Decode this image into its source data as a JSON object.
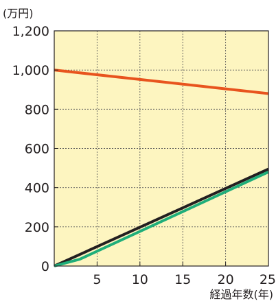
{
  "chart_data": {
    "type": "line",
    "y_unit_label": "(万円)",
    "xlabel": "経過年数(年)",
    "xlim": [
      0,
      25
    ],
    "ylim": [
      0,
      1200
    ],
    "x_ticks": [
      5,
      10,
      15,
      20,
      25
    ],
    "y_ticks": [
      {
        "value": 0,
        "label": "0"
      },
      {
        "value": 200,
        "label": "200"
      },
      {
        "value": 400,
        "label": "400"
      },
      {
        "value": 600,
        "label": "600"
      },
      {
        "value": 800,
        "label": "800"
      },
      {
        "value": 1000,
        "label": "1,000"
      },
      {
        "value": 1200,
        "label": "1,200"
      }
    ],
    "grid": true,
    "background_color": "#fdf5c0",
    "series": [
      {
        "color": "#e8541e",
        "points": [
          [
            0,
            1000
          ],
          [
            25,
            880
          ]
        ]
      },
      {
        "color": "#231f20",
        "points": [
          [
            0,
            0
          ],
          [
            25,
            495
          ]
        ]
      },
      {
        "color": "#1fae7a",
        "points": [
          [
            0,
            0
          ],
          [
            3,
            35
          ],
          [
            25,
            480
          ]
        ]
      }
    ]
  }
}
